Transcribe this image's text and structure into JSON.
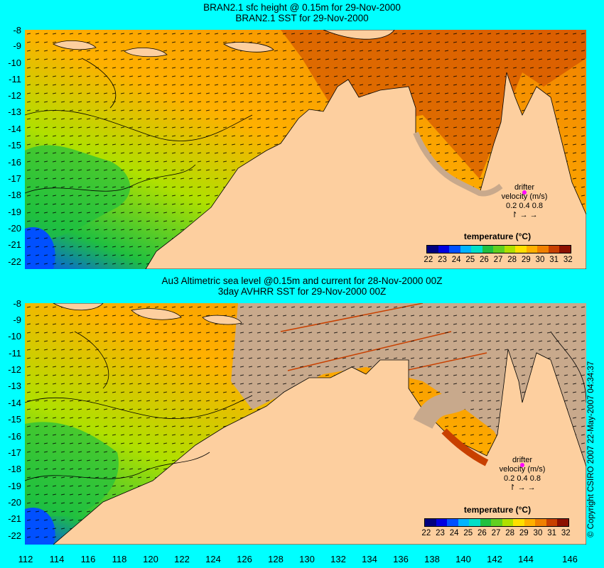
{
  "panel_top": {
    "title_line1": "BRAN2.1 sfc height @ 0.15m for 29-Nov-2000",
    "title_line2": "BRAN2.1 SST for 29-Nov-2000",
    "colorbar_title": "temperature (°C)",
    "drifter_line1": "drifter",
    "drifter_line2": "velocity (m/s)",
    "drifter_line3": "0.2  0.4  0.8"
  },
  "panel_bottom": {
    "title_line1": "Au3 Altimetric sea level  @0.15m and current for 28-Nov-2000 00Z",
    "title_line2": "3day AVHRR SST for 29-Nov-2000 00Z",
    "colorbar_title": "temperature (°C)",
    "drifter_line1": "drifter",
    "drifter_line2": "velocity (m/s)",
    "drifter_line3": "0.2  0.4  0.8"
  },
  "colorbar": {
    "ticks": [
      "22",
      "23",
      "24",
      "25",
      "26",
      "27",
      "28",
      "29",
      "30",
      "31",
      "32"
    ],
    "colors": [
      "#00007f",
      "#0000e0",
      "#0050ff",
      "#00b4ff",
      "#00e0c8",
      "#20c040",
      "#60d020",
      "#b0e000",
      "#ffe000",
      "#ffb000",
      "#f08000",
      "#c84000",
      "#8c1000"
    ]
  },
  "lat_labels": [
    "-8",
    "-9",
    "-10",
    "-11",
    "-12",
    "-13",
    "-14",
    "-15",
    "-16",
    "-17",
    "-18",
    "-19",
    "-20",
    "-21",
    "-22"
  ],
  "lon_labels": [
    "112",
    "114",
    "116",
    "118",
    "120",
    "122",
    "124",
    "126",
    "128",
    "130",
    "132",
    "134",
    "136",
    "138",
    "140",
    "142",
    "144",
    "146"
  ],
  "copyright": "© Copyright CSIRO 2007 22-May-2007 04:34:37",
  "colors": {
    "land": "#fdcf9f",
    "no_data": "#c8a98c",
    "background": "#00ffff",
    "drifter": "#ff00ff"
  }
}
